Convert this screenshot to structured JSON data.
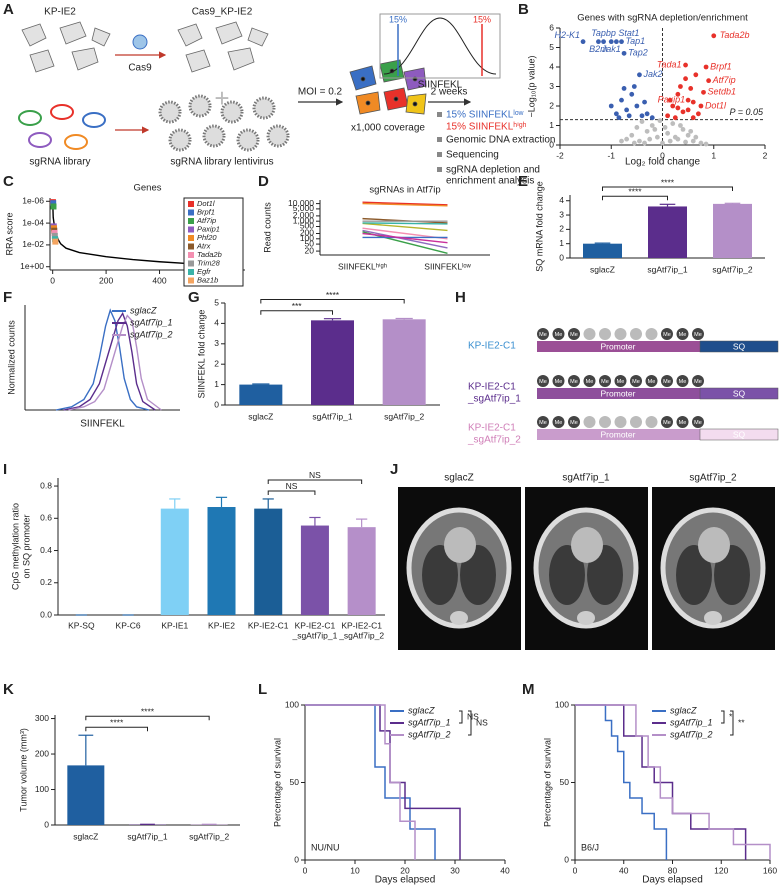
{
  "schematic_a": {
    "label": "A",
    "parental": "KP-IE2",
    "cas9_line": "Cas9_KP-IE2",
    "cas9": "Cas9",
    "library": "sgRNA library",
    "lentivirus": "sgRNA library lentivirus",
    "moi": "MOI = 0.2",
    "coverage": "x1,000 coverage",
    "time": "2 weeks",
    "readout": "SIINFEKL",
    "gate_low": "15%",
    "gate_high": "15%",
    "sort_low": "15% SIINFEKLˡᵒʷ",
    "sort_high": "15% SIINFEKLʰⁱᵍʰ",
    "steps": [
      "Genomic DNA extraction",
      "Sequencing",
      [
        "sgRNA depletion and",
        "enrichment analysis"
      ]
    ]
  },
  "chart_data": [
    {
      "type": "scatter",
      "label": "B",
      "title": "Genes with sgRNA depletion/enrichment",
      "xlabel": "Log₂ fold change",
      "ylabel": "−Log₁₀(p value)",
      "xlim": [
        -2,
        2
      ],
      "xticks": [
        -2,
        -1,
        0,
        1,
        2
      ],
      "ylim": [
        0,
        6
      ],
      "yticks": [
        0,
        1,
        2,
        3,
        4,
        5,
        6
      ],
      "hline": 1.3,
      "vline": 0,
      "annotation": "P = 0.05",
      "series": [
        {
          "color": "#bdbdbd",
          "x": [
            -0.8,
            -0.6,
            -0.5,
            -0.4,
            -0.3,
            -0.2,
            -0.1,
            0,
            0.1,
            0.2,
            0.3,
            0.4,
            0.5,
            0.6,
            0.75,
            -0.7,
            -0.45,
            -0.25,
            -0.05,
            0.05,
            0.15,
            0.35,
            0.55,
            -0.35,
            0.25,
            0.45,
            -0.15,
            0.65,
            -0.55,
            0.85
          ],
          "values": [
            0.2,
            0.5,
            0.9,
            1.2,
            0.7,
            1.0,
            0.4,
            0.1,
            0.6,
            1.1,
            0.3,
            0.8,
            0.5,
            0.2,
            0.1,
            0.3,
            0.2,
            0.3,
            1.25,
            0.9,
            0.2,
            1.0,
            0.7,
            0.1,
            0.4,
            0.15,
            0.8,
            0.4,
            0.1,
            0.05
          ]
        },
        {
          "color": "#3a5fb0",
          "x": [
            -1.55,
            -1.25,
            -1.15,
            -1.0,
            -0.9,
            -0.8,
            -0.75,
            -0.45,
            -1.0,
            -0.9,
            -0.8,
            -0.7,
            -0.6,
            -0.5,
            -0.4,
            -0.3,
            -0.85,
            -0.65,
            -0.55,
            -0.35,
            -0.2,
            -0.75
          ],
          "values": [
            5.3,
            5.3,
            5.3,
            5.3,
            5.3,
            5.3,
            4.7,
            3.6,
            2.0,
            1.6,
            2.3,
            1.8,
            2.6,
            2.0,
            1.5,
            1.6,
            1.4,
            1.5,
            3.0,
            2.2,
            1.4,
            2.9
          ],
          "point_labels": [
            "H2-K1",
            "B2m",
            "Tapbp",
            "Jak1",
            "Stat1",
            "Tap1",
            "Tap2",
            "Jak2",
            null,
            null,
            null,
            null,
            null,
            null,
            null,
            null,
            null,
            null,
            null,
            null,
            null,
            null
          ]
        },
        {
          "color": "#e8312a",
          "x": [
            1.0,
            0.45,
            0.85,
            0.9,
            0.8,
            0.5,
            0.75,
            0.1,
            0.2,
            0.3,
            0.35,
            0.5,
            0.6,
            0.65,
            0.55,
            0.7,
            0.25,
            0.4,
            0.15,
            0.6,
            0.3,
            0.45
          ],
          "values": [
            5.6,
            4.1,
            4.0,
            3.3,
            2.7,
            2.3,
            2.0,
            1.5,
            2.0,
            2.6,
            3.0,
            1.8,
            2.2,
            3.6,
            2.9,
            1.6,
            1.4,
            1.7,
            2.3,
            1.4,
            1.9,
            3.4
          ],
          "point_labels": [
            "Tada2b",
            "Tada1",
            "Brpf1",
            "Atf7ip",
            "Setdb1",
            "Paxip1",
            "Dot1l",
            null,
            null,
            null,
            null,
            null,
            null,
            null,
            null,
            null,
            null,
            null,
            null,
            null,
            null,
            null
          ]
        }
      ]
    },
    {
      "type": "line",
      "label": "C",
      "title": "Genes",
      "ylabel": "RRA score",
      "xlim": [
        -10,
        720
      ],
      "xticks": [
        0,
        200,
        400,
        600
      ],
      "ylim": [
        2,
        5e-07
      ],
      "ylog": true,
      "yticks": [
        {
          "value": 1e-06,
          "label": "1e-06"
        },
        {
          "value": 0.0001,
          "label": "1e-04"
        },
        {
          "value": 0.01,
          "label": "1e-02"
        },
        {
          "value": 1,
          "label": "1e+00"
        }
      ],
      "legend": "top-right",
      "series": [
        {
          "color": "#000000",
          "x": [
            0,
            1,
            2,
            5,
            10,
            20,
            30,
            50,
            100,
            200,
            300,
            400,
            500,
            600,
            700
          ],
          "values": [
            1e-06,
            5e-06,
            3e-05,
            0.0001,
            0.0006,
            0.003,
            0.008,
            0.02,
            0.05,
            0.12,
            0.22,
            0.35,
            0.5,
            0.7,
            0.95
          ]
        },
        {
          "name": "Dot1l",
          "color": "#e8312a",
          "marker": "square",
          "x": [
            1
          ],
          "values": [
            1.2e-06
          ]
        },
        {
          "name": "Brpf1",
          "color": "#3a6fc4",
          "marker": "square",
          "x": [
            2
          ],
          "values": [
            1.5e-06
          ]
        },
        {
          "name": "Atf7ip",
          "color": "#3aa04a",
          "marker": "square",
          "x": [
            3
          ],
          "values": [
            3e-06
          ]
        },
        {
          "name": "Paxip1",
          "color": "#8e5bbf",
          "marker": "square",
          "x": [
            4
          ],
          "values": [
            0.0002
          ]
        },
        {
          "name": "Phf20",
          "color": "#f08a24",
          "marker": "square",
          "x": [
            5
          ],
          "values": [
            0.0003
          ]
        },
        {
          "name": "Atrx",
          "color": "#8b5a2b",
          "marker": "square",
          "x": [
            6
          ],
          "values": [
            0.0005
          ]
        },
        {
          "name": "Tada2b",
          "color": "#f48fb1",
          "marker": "square",
          "x": [
            7
          ],
          "values": [
            0.0008
          ]
        },
        {
          "name": "Trim28",
          "color": "#999999",
          "marker": "square",
          "x": [
            8
          ],
          "values": [
            0.0015
          ]
        },
        {
          "name": "Egfr",
          "color": "#3bb3a8",
          "marker": "square",
          "x": [
            9
          ],
          "values": [
            0.003
          ]
        },
        {
          "name": "Baz1b",
          "color": "#f4a460",
          "marker": "square",
          "x": [
            10
          ],
          "values": [
            0.005
          ]
        }
      ]
    },
    {
      "type": "line",
      "label": "D",
      "title": "sgRNAs in Atf7ip",
      "ylabel": "Read counts",
      "categories": [
        "SIINFEKLʰⁱᵍʰ",
        "SIINFEKLˡᵒʷ"
      ],
      "ylim": [
        12,
        16000
      ],
      "ylog": true,
      "yticks": [
        20,
        50,
        100,
        200,
        500,
        {
          "value": 1000,
          "label": "1,000"
        },
        {
          "value": 2000,
          "label": "2,000"
        },
        {
          "value": 5000,
          "label": "5,000"
        },
        {
          "value": 10000,
          "label": "10,000"
        }
      ],
      "series": [
        {
          "color": "#e8312a",
          "values": [
            12000,
            8500
          ]
        },
        {
          "color": "#f08a24",
          "values": [
            10000,
            7500
          ]
        },
        {
          "color": "#8b5a2b",
          "values": [
            1400,
            800
          ]
        },
        {
          "color": "#999999",
          "values": [
            1000,
            1000
          ]
        },
        {
          "color": "#b5b52b",
          "values": [
            750,
            300
          ]
        },
        {
          "color": "#3bb3a8",
          "values": [
            800,
            700
          ]
        },
        {
          "color": "#f48fb1",
          "values": [
            400,
            100
          ]
        },
        {
          "color": "#8e6bbf",
          "values": [
            300,
            30
          ]
        },
        {
          "color": "#3aa04a",
          "values": [
            250,
            15
          ]
        },
        {
          "color": "#3a6fc4",
          "values": [
            120,
            120
          ]
        },
        {
          "color": "#c9309b",
          "values": [
            200,
            60
          ]
        }
      ]
    },
    {
      "type": "bar",
      "label": "E",
      "ylabel": "SQ mRNA fold change",
      "categories": [
        "sglacZ",
        "sgAtf7ip_1",
        "sgAtf7ip_2"
      ],
      "values": [
        1,
        3.6,
        3.78
      ],
      "errors": [
        0.04,
        0.15,
        0.04
      ],
      "colors": [
        "#1f5fa0",
        "#5b2d8c",
        "#b48fc8"
      ],
      "ylim": [
        0,
        4.4
      ],
      "yticks": [
        0,
        1,
        2,
        3,
        4
      ],
      "brackets": [
        {
          "from": 0,
          "to": 1,
          "label": "****"
        },
        {
          "from": 0,
          "to": 2,
          "label": "****"
        }
      ]
    },
    {
      "type": "line",
      "label": "F",
      "xlabel": "SIINFEKL",
      "ylabel": "Normalized counts",
      "xlim": [
        0,
        100
      ],
      "ylim": [
        0,
        100
      ],
      "legend": "top-right",
      "series": [
        {
          "name": "sglacZ",
          "color": "#3a6fc4",
          "x": [
            20,
            30,
            38,
            44,
            48,
            52,
            55,
            58,
            61,
            64,
            68,
            72,
            80
          ],
          "values": [
            0,
            3,
            10,
            25,
            50,
            80,
            95,
            85,
            60,
            30,
            10,
            3,
            0
          ]
        },
        {
          "name": "sgAtf7ip_1",
          "color": "#5b2d8c",
          "x": [
            25,
            35,
            42,
            48,
            53,
            57,
            60,
            63,
            66,
            69,
            72,
            76,
            84
          ],
          "values": [
            0,
            3,
            10,
            25,
            50,
            70,
            85,
            92,
            80,
            55,
            25,
            8,
            0
          ]
        },
        {
          "name": "sgAtf7ip_2",
          "color": "#b48fc8",
          "x": [
            28,
            38,
            45,
            51,
            56,
            60,
            63,
            66,
            69,
            72,
            75,
            79,
            88
          ],
          "values": [
            0,
            3,
            8,
            20,
            45,
            65,
            80,
            90,
            85,
            60,
            30,
            10,
            0
          ]
        }
      ]
    },
    {
      "type": "bar",
      "label": "G",
      "ylabel": "SIINFEKL fold change",
      "categories": [
        "sglacZ",
        "sgAtf7ip_1",
        "sgAtf7ip_2"
      ],
      "values": [
        1,
        4.15,
        4.2
      ],
      "errors": [
        0.03,
        0.08,
        0.04
      ],
      "colors": [
        "#1f5fa0",
        "#5b2d8c",
        "#b48fc8"
      ],
      "ylim": [
        0,
        5
      ],
      "yticks": [
        0,
        1,
        2,
        3,
        4,
        5
      ],
      "brackets": [
        {
          "from": 0,
          "to": 1,
          "label": "***"
        },
        {
          "from": 0,
          "to": 2,
          "label": "****"
        }
      ]
    },
    {
      "type": "bar",
      "label": "I",
      "ylabel": [
        "CpG methylation ratio",
        "on SQ promoter"
      ],
      "categories": [
        [
          "KP-SQ"
        ],
        [
          "KP-C6"
        ],
        [
          "KP-IE1"
        ],
        [
          "KP-IE2"
        ],
        [
          "KP-IE2-C1"
        ],
        [
          "KP-IE2-C1",
          "_sgAtf7ip_1"
        ],
        [
          "KP-IE2-C1",
          "_sgAtf7ip_2"
        ]
      ],
      "values": [
        0,
        0,
        0.66,
        0.67,
        0.66,
        0.555,
        0.545
      ],
      "errors": [
        0,
        0,
        0.06,
        0.06,
        0.06,
        0.05,
        0.05
      ],
      "colors": [
        "#1f5fa0",
        "#1f5fa0",
        "#7fd0f5",
        "#1f78b4",
        "#1b5e96",
        "#7b52a8",
        "#b58fc9"
      ],
      "ylim": [
        0,
        0.85
      ],
      "yticks": [
        {
          "value": 0,
          "label": "0.0"
        },
        {
          "value": 0.2,
          "label": "0.2"
        },
        {
          "value": 0.4,
          "label": "0.4"
        },
        {
          "value": 0.6,
          "label": "0.6"
        },
        {
          "value": 0.8,
          "label": "0.8"
        }
      ],
      "brackets": [
        {
          "from": 4,
          "to": 5,
          "label": "NS"
        },
        {
          "from": 4,
          "to": 6,
          "label": "NS"
        }
      ]
    },
    {
      "type": "bar",
      "label": "K",
      "ylabel": "Tumor volume (mm³)",
      "categories": [
        "sglacZ",
        "sgAtf7ip_1",
        "sgAtf7ip_2"
      ],
      "values": [
        168,
        1,
        1
      ],
      "errors": [
        85,
        1,
        1
      ],
      "colors": [
        "#1f5fa0",
        "#5b2d8c",
        "#b48fc8"
      ],
      "ylim": [
        0,
        310
      ],
      "yticks": [
        0,
        100,
        200,
        300
      ],
      "brackets": [
        {
          "from": 0,
          "to": 1,
          "label": "****"
        },
        {
          "from": 0,
          "to": 2,
          "label": "****"
        }
      ]
    },
    {
      "type": "step",
      "label": "L",
      "xlabel": "Days elapsed",
      "ylabel": "Percentage of survival",
      "annotation": "NU/NU",
      "xlim": [
        0,
        40
      ],
      "xticks": [
        0,
        10,
        20,
        30,
        40
      ],
      "ylim": [
        0,
        100
      ],
      "yticks": [
        0,
        50,
        100
      ],
      "legend": "top-right",
      "series": [
        {
          "name": "sglacZ",
          "color": "#3a6fc4",
          "x": [
            0,
            14,
            16,
            21,
            26
          ],
          "values": [
            100,
            60,
            40,
            20,
            0
          ]
        },
        {
          "name": "sgAtf7ip_1",
          "color": "#5b2d8c",
          "x": [
            0,
            15,
            17,
            20,
            31
          ],
          "values": [
            100,
            83.3,
            50,
            33.3,
            0
          ]
        },
        {
          "name": "sgAtf7ip_2",
          "color": "#b48fc8",
          "x": [
            0,
            16,
            17,
            19,
            22
          ],
          "values": [
            100,
            75,
            50,
            25,
            0
          ]
        }
      ],
      "brackets": [
        {
          "from": 0,
          "to": 1,
          "label": "NS"
        },
        {
          "from": 0,
          "to": 2,
          "label": "NS"
        }
      ]
    },
    {
      "type": "step",
      "label": "M",
      "xlabel": "Days elapsed",
      "ylabel": "Percentage of survival",
      "annotation": "B6/J",
      "xlim": [
        0,
        160
      ],
      "xticks": [
        0,
        40,
        80,
        120,
        160
      ],
      "ylim": [
        0,
        100
      ],
      "yticks": [
        0,
        50,
        100
      ],
      "legend": "top-right",
      "series": [
        {
          "name": "sglacZ",
          "color": "#3a6fc4",
          "x": [
            0,
            25,
            30,
            35,
            40,
            45,
            55,
            65,
            75
          ],
          "values": [
            100,
            90,
            80,
            70,
            50,
            40,
            30,
            20,
            0
          ]
        },
        {
          "name": "sgAtf7ip_1",
          "color": "#5b2d8c",
          "x": [
            0,
            40,
            55,
            65,
            80,
            95,
            140
          ],
          "values": [
            100,
            80,
            60,
            50,
            30,
            20,
            0
          ]
        },
        {
          "name": "sgAtf7ip_2",
          "color": "#b48fc8",
          "x": [
            0,
            50,
            60,
            70,
            80,
            110,
            130,
            160
          ],
          "values": [
            100,
            80,
            60,
            40,
            30,
            20,
            10,
            0
          ]
        }
      ],
      "brackets": [
        {
          "from": 0,
          "to": 1,
          "label": "*"
        },
        {
          "from": 0,
          "to": 2,
          "label": "**"
        }
      ]
    }
  ],
  "schematic_h": {
    "label": "H",
    "rows": [
      [
        "KP-IE2-C1"
      ],
      [
        "KP-IE2-C1",
        "_sgAtf7ip_1"
      ],
      [
        "KP-IE2-C1",
        "_sgAtf7ip_2"
      ]
    ],
    "promoter": "Promoter",
    "gene": "SQ",
    "mark": "Me"
  },
  "images_j": {
    "label": "J",
    "images": [
      "sglacZ",
      "sgAtf7ip_1",
      "sgAtf7ip_2"
    ]
  }
}
